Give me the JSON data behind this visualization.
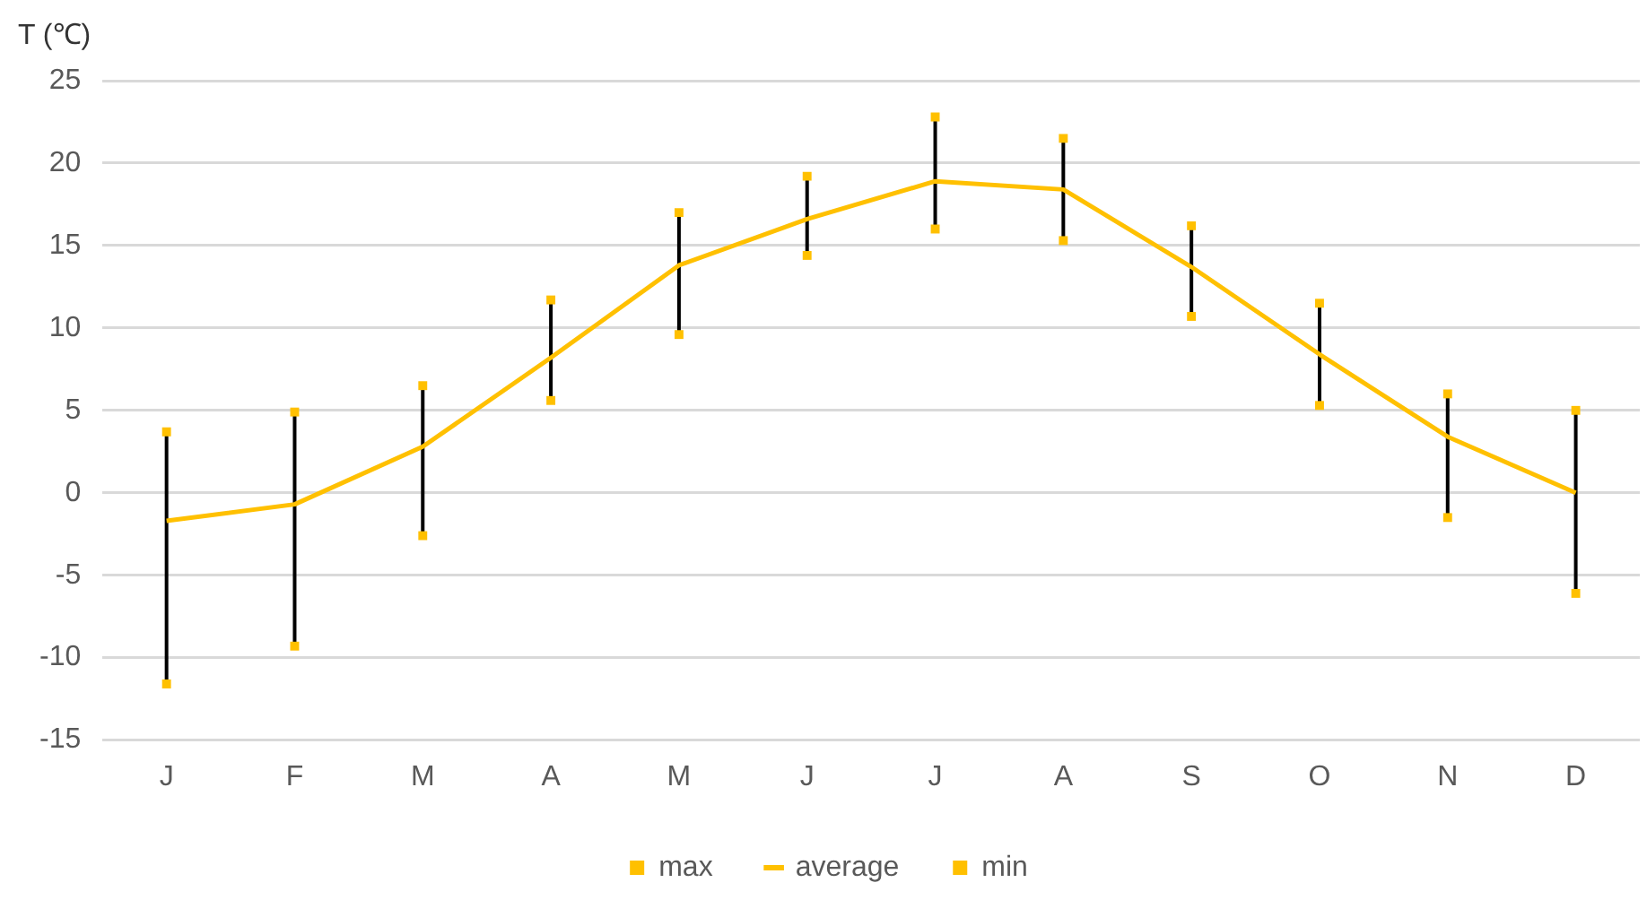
{
  "chart_data": {
    "type": "line",
    "ylabel": "T (℃)",
    "categories": [
      "J",
      "F",
      "M",
      "A",
      "M",
      "J",
      "J",
      "A",
      "S",
      "O",
      "N",
      "D"
    ],
    "series": [
      {
        "name": "max",
        "type": "scatter",
        "marker": "square",
        "color": "#ffc000",
        "values": [
          3.7,
          4.9,
          6.5,
          11.7,
          17.0,
          19.2,
          22.8,
          21.5,
          16.2,
          11.5,
          6.0,
          5.0
        ]
      },
      {
        "name": "average",
        "type": "line",
        "marker": "none",
        "color": "#ffc000",
        "values": [
          -1.7,
          -0.7,
          2.8,
          8.2,
          13.8,
          16.6,
          18.9,
          18.4,
          13.7,
          8.4,
          3.4,
          0.0
        ]
      },
      {
        "name": "min",
        "type": "scatter",
        "marker": "square",
        "color": "#ffc000",
        "values": [
          -11.6,
          -9.3,
          -2.6,
          5.6,
          9.6,
          14.4,
          16.0,
          15.3,
          10.7,
          5.3,
          -1.5,
          -6.1
        ]
      }
    ],
    "ylim": [
      -15,
      25
    ],
    "yticks": [
      -15,
      -10,
      -5,
      0,
      5,
      10,
      15,
      20,
      25
    ],
    "grid": "y",
    "legend": "bottom"
  }
}
